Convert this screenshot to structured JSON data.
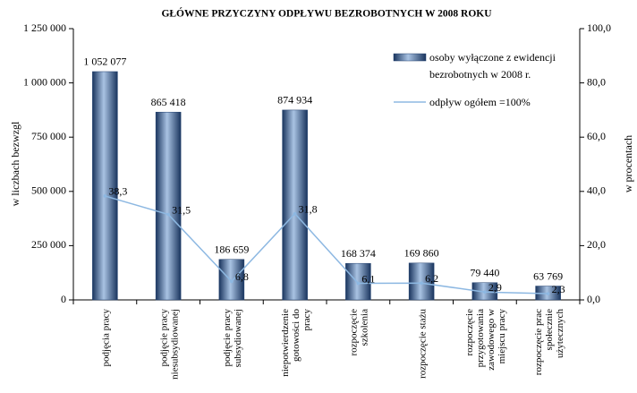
{
  "chart_data": {
    "type": "bar",
    "title": "GŁÓWNE PRZYCZYNY ODPŁYWU BEZROBOTNYCH  W  2008  ROKU",
    "y_label": "w liczbach bezwzgl",
    "y2_label": "w procentach",
    "categories": [
      "podjęcia pracy",
      "podjęcie pracy\nniesubsydiowanej",
      "podjęcie pracy\nsubsydiowanej",
      "niepotwierdzenie\ngotowości do\npracy",
      "rozpoczęcie\nszkolenia",
      "rozpoczęcie stażu",
      "rozpoczęcie\nprzygotowania\nzawodowego w\nmiejscu pracy",
      "rozpoczęcie prac\nspołecznie\nużytecznych"
    ],
    "ylim": [
      0,
      1250000
    ],
    "yticks": [
      0,
      {
        "value": 250000,
        "label": "250 000"
      },
      {
        "value": 500000,
        "label": "500 000"
      },
      {
        "value": 750000,
        "label": "750 000"
      },
      {
        "value": 1000000,
        "label": "1 000 000"
      },
      {
        "value": 1250000,
        "label": "1 250 000"
      }
    ],
    "y2lim": [
      0,
      100
    ],
    "y2ticks": [
      {
        "value": 0,
        "label": "0,0"
      },
      {
        "value": 20,
        "label": "20,0"
      },
      {
        "value": 40,
        "label": "40,0"
      },
      {
        "value": 60,
        "label": "60,0"
      },
      {
        "value": 80,
        "label": "80,0"
      },
      {
        "value": 100,
        "label": "100,0"
      }
    ],
    "series": [
      {
        "name": "osoby wyłączone z ewidencji\nbezrobotnych  w 2008 r.",
        "color": "#1f3f6e",
        "values": [
          1052077,
          865418,
          186659,
          874934,
          168374,
          169860,
          79440,
          63769
        ],
        "value_labels": [
          "1 052 077",
          "865 418",
          "186 659",
          "874 934",
          "168 374",
          "169 860",
          "79 440",
          "63 769"
        ]
      },
      {
        "name": "odpływ ogółem =100%",
        "type": "line",
        "axis": "y2",
        "color": "#8db8e2",
        "values": [
          38.3,
          31.5,
          6.8,
          31.8,
          6.1,
          6.2,
          2.9,
          2.3
        ],
        "value_labels": [
          "38,3",
          "31,5",
          "6,8",
          "31,8",
          "6,1",
          "6,2",
          "2,9",
          "2,3"
        ]
      }
    ]
  }
}
